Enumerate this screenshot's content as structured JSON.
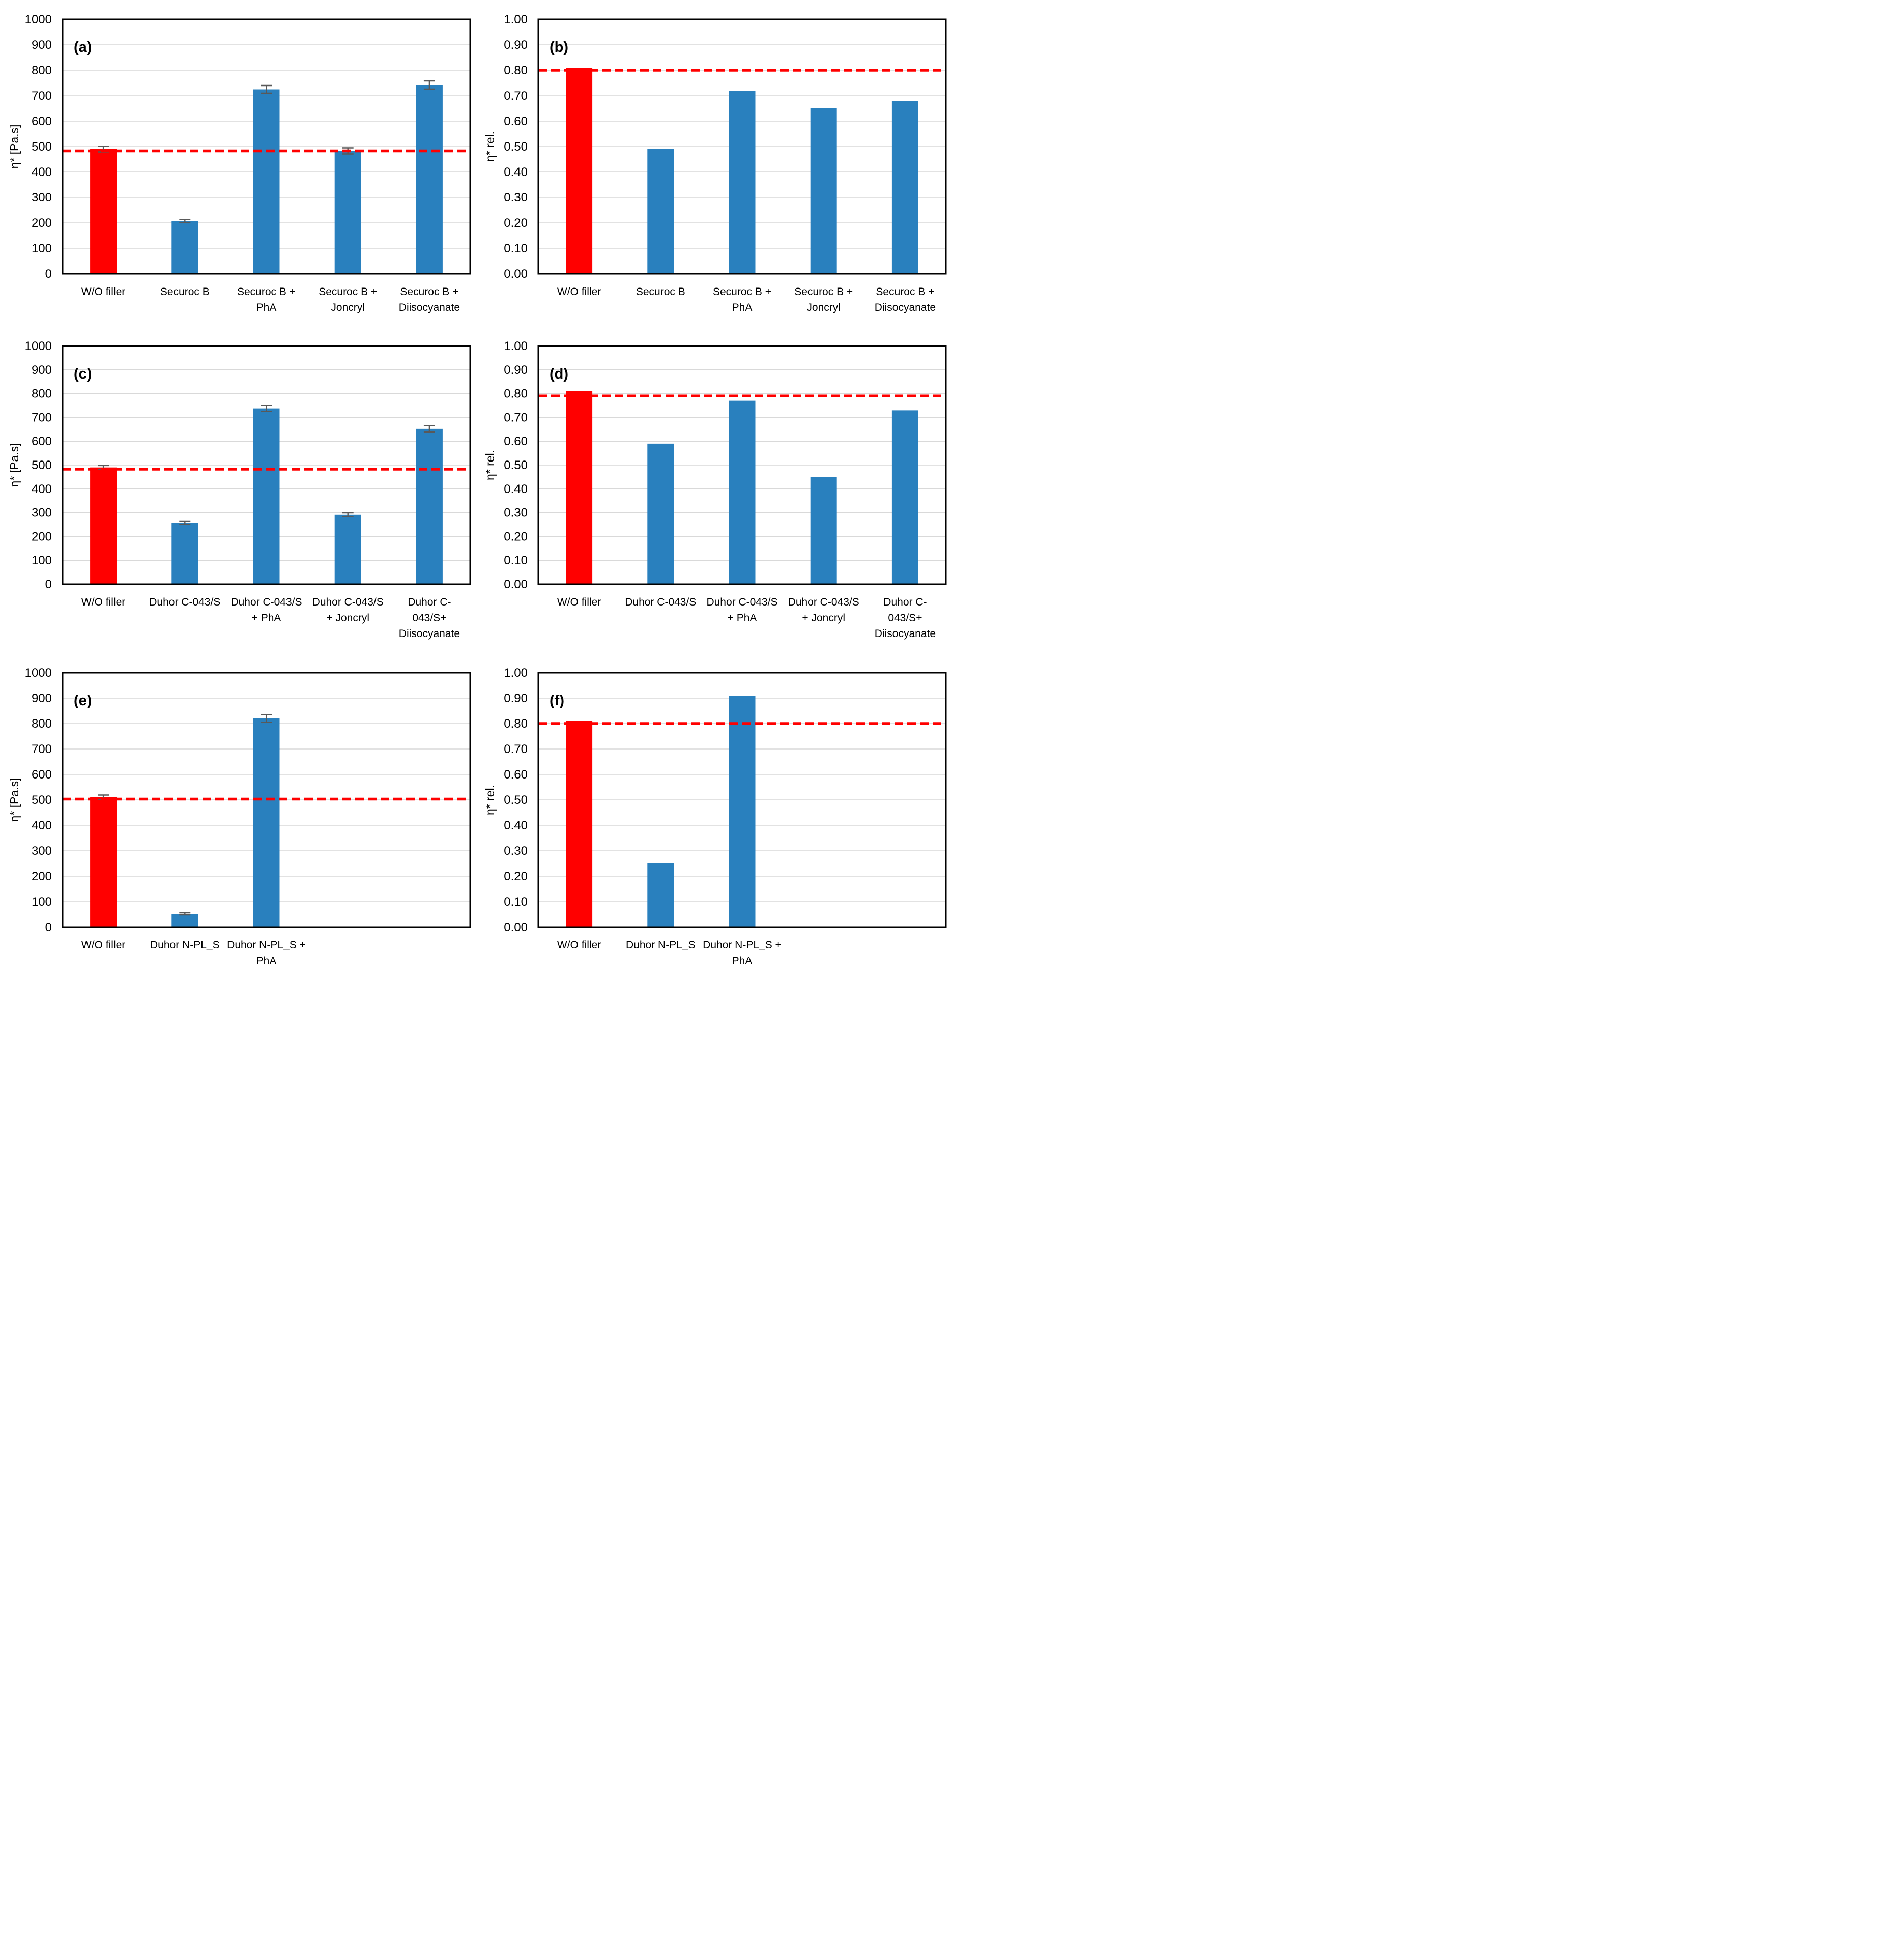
{
  "style": {
    "bar_color": "#2980BE",
    "highlight_color": "#FF0000",
    "reference_color": "#FF0000",
    "error_color": "#595959",
    "gridline_color": "#D9D9D9",
    "axis_color": "#000000",
    "background": "#FFFFFF"
  },
  "chart_data": [
    {
      "id": "a",
      "type": "bar",
      "panel_label": "(a)",
      "ylabel": "η* [Pa.s]",
      "xlabel": "",
      "ylim": [
        0,
        1000
      ],
      "ytick_step": 100,
      "yticks": [
        "0",
        "100",
        "200",
        "300",
        "400",
        "500",
        "600",
        "700",
        "800",
        "900",
        "1000"
      ],
      "grid": true,
      "legend": false,
      "slots": 5,
      "categories": [
        "W/O filler",
        "Securoc B",
        "Securoc B + PhA",
        "Securoc B + Joncryl",
        "Securoc B + Diisocyanate"
      ],
      "categories_lines": [
        [
          "W/O filler"
        ],
        [
          "Securoc B"
        ],
        [
          "Securoc B +",
          "PhA"
        ],
        [
          "Securoc B +",
          "Joncryl"
        ],
        [
          "Securoc B +",
          "Diisocyanate"
        ]
      ],
      "values": [
        490,
        207,
        725,
        483,
        742
      ],
      "errors": [
        11,
        6,
        15,
        12,
        16
      ],
      "highlight_index": 0,
      "reference_line": 483
    },
    {
      "id": "b",
      "type": "bar",
      "panel_label": "(b)",
      "ylabel": "η* rel.",
      "xlabel": "",
      "ylim": [
        0,
        1
      ],
      "ytick_step": 0.1,
      "yticks": [
        "0.00",
        "0.10",
        "0.20",
        "0.30",
        "0.40",
        "0.50",
        "0.60",
        "0.70",
        "0.80",
        "0.90",
        "1.00"
      ],
      "grid": true,
      "legend": false,
      "slots": 5,
      "categories": [
        "W/O filler",
        "Securoc B",
        "Securoc B + PhA",
        "Securoc B + Joncryl",
        "Securoc B + Diisocyanate"
      ],
      "categories_lines": [
        [
          "W/O filler"
        ],
        [
          "Securoc B"
        ],
        [
          "Securoc B +",
          "PhA"
        ],
        [
          "Securoc B +",
          "Joncryl"
        ],
        [
          "Securoc B +",
          "Diisocyanate"
        ]
      ],
      "values": [
        0.81,
        0.49,
        0.72,
        0.65,
        0.68
      ],
      "errors": null,
      "highlight_index": 0,
      "reference_line": 0.8
    },
    {
      "id": "c",
      "type": "bar",
      "panel_label": "(c)",
      "ylabel": "η* [Pa.s]",
      "xlabel": "",
      "ylim": [
        0,
        1000
      ],
      "ytick_step": 100,
      "yticks": [
        "0",
        "100",
        "200",
        "300",
        "400",
        "500",
        "600",
        "700",
        "800",
        "900",
        "1000"
      ],
      "grid": true,
      "legend": false,
      "slots": 5,
      "categories": [
        "W/O filler",
        "Duhor C-043/S",
        "Duhor C-043/S + PhA",
        "Duhor C-043/S + Joncryl",
        "Duhor C-043/S+ Diisocyanate"
      ],
      "categories_lines": [
        [
          "W/O filler"
        ],
        [
          "Duhor C-043/S"
        ],
        [
          "Duhor C-043/S",
          "+ PhA"
        ],
        [
          "Duhor C-043/S",
          "+ Joncryl"
        ],
        [
          "Duhor C-",
          "043/S+",
          "Diisocyanate"
        ]
      ],
      "values": [
        490,
        258,
        738,
        291,
        652
      ],
      "errors": [
        8,
        7,
        13,
        8,
        13
      ],
      "highlight_index": 0,
      "reference_line": 483
    },
    {
      "id": "d",
      "type": "bar",
      "panel_label": "(d)",
      "ylabel": "η* rel.",
      "xlabel": "",
      "ylim": [
        0,
        1
      ],
      "ytick_step": 0.1,
      "yticks": [
        "0.00",
        "0.10",
        "0.20",
        "0.30",
        "0.40",
        "0.50",
        "0.60",
        "0.70",
        "0.80",
        "0.90",
        "1.00"
      ],
      "grid": true,
      "legend": false,
      "slots": 5,
      "categories": [
        "W/O filler",
        "Duhor C-043/S",
        "Duhor C-043/S + PhA",
        "Duhor C-043/S + Joncryl",
        "Duhor C-043/S+ Diisocyanate"
      ],
      "categories_lines": [
        [
          "W/O filler"
        ],
        [
          "Duhor C-043/S"
        ],
        [
          "Duhor C-043/S",
          "+ PhA"
        ],
        [
          "Duhor C-043/S",
          "+ Joncryl"
        ],
        [
          "Duhor C-",
          "043/S+",
          "Diisocyanate"
        ]
      ],
      "values": [
        0.81,
        0.59,
        0.77,
        0.45,
        0.73
      ],
      "errors": null,
      "highlight_index": 0,
      "reference_line": 0.79
    },
    {
      "id": "e",
      "type": "bar",
      "panel_label": "(e)",
      "ylabel": "η* [Pa.s]",
      "xlabel": "",
      "ylim": [
        0,
        1000
      ],
      "ytick_step": 100,
      "yticks": [
        "0",
        "100",
        "200",
        "300",
        "400",
        "500",
        "600",
        "700",
        "800",
        "900",
        "1000"
      ],
      "grid": true,
      "legend": false,
      "slots": 5,
      "categories": [
        "W/O filler",
        "Duhor N-PL_S",
        "Duhor N-PL_S + PhA"
      ],
      "categories_lines": [
        [
          "W/O filler"
        ],
        [
          "Duhor N-PL_S"
        ],
        [
          "Duhor N-PL_S +",
          "PhA"
        ]
      ],
      "values": [
        510,
        52,
        820
      ],
      "errors": [
        9,
        4,
        15
      ],
      "highlight_index": 0,
      "reference_line": 503
    },
    {
      "id": "f",
      "type": "bar",
      "panel_label": "(f)",
      "ylabel": "η* rel.",
      "xlabel": "",
      "ylim": [
        0,
        1
      ],
      "ytick_step": 0.1,
      "yticks": [
        "0.00",
        "0.10",
        "0.20",
        "0.30",
        "0.40",
        "0.50",
        "0.60",
        "0.70",
        "0.80",
        "0.90",
        "1.00"
      ],
      "grid": true,
      "legend": false,
      "slots": 5,
      "categories": [
        "W/O filler",
        "Duhor N-PL_S",
        "Duhor N-PL_S + PhA"
      ],
      "categories_lines": [
        [
          "W/O filler"
        ],
        [
          "Duhor N-PL_S"
        ],
        [
          "Duhor N-PL_S +",
          "PhA"
        ]
      ],
      "values": [
        0.81,
        0.25,
        0.91
      ],
      "errors": null,
      "highlight_index": 0,
      "reference_line": 0.8
    }
  ]
}
